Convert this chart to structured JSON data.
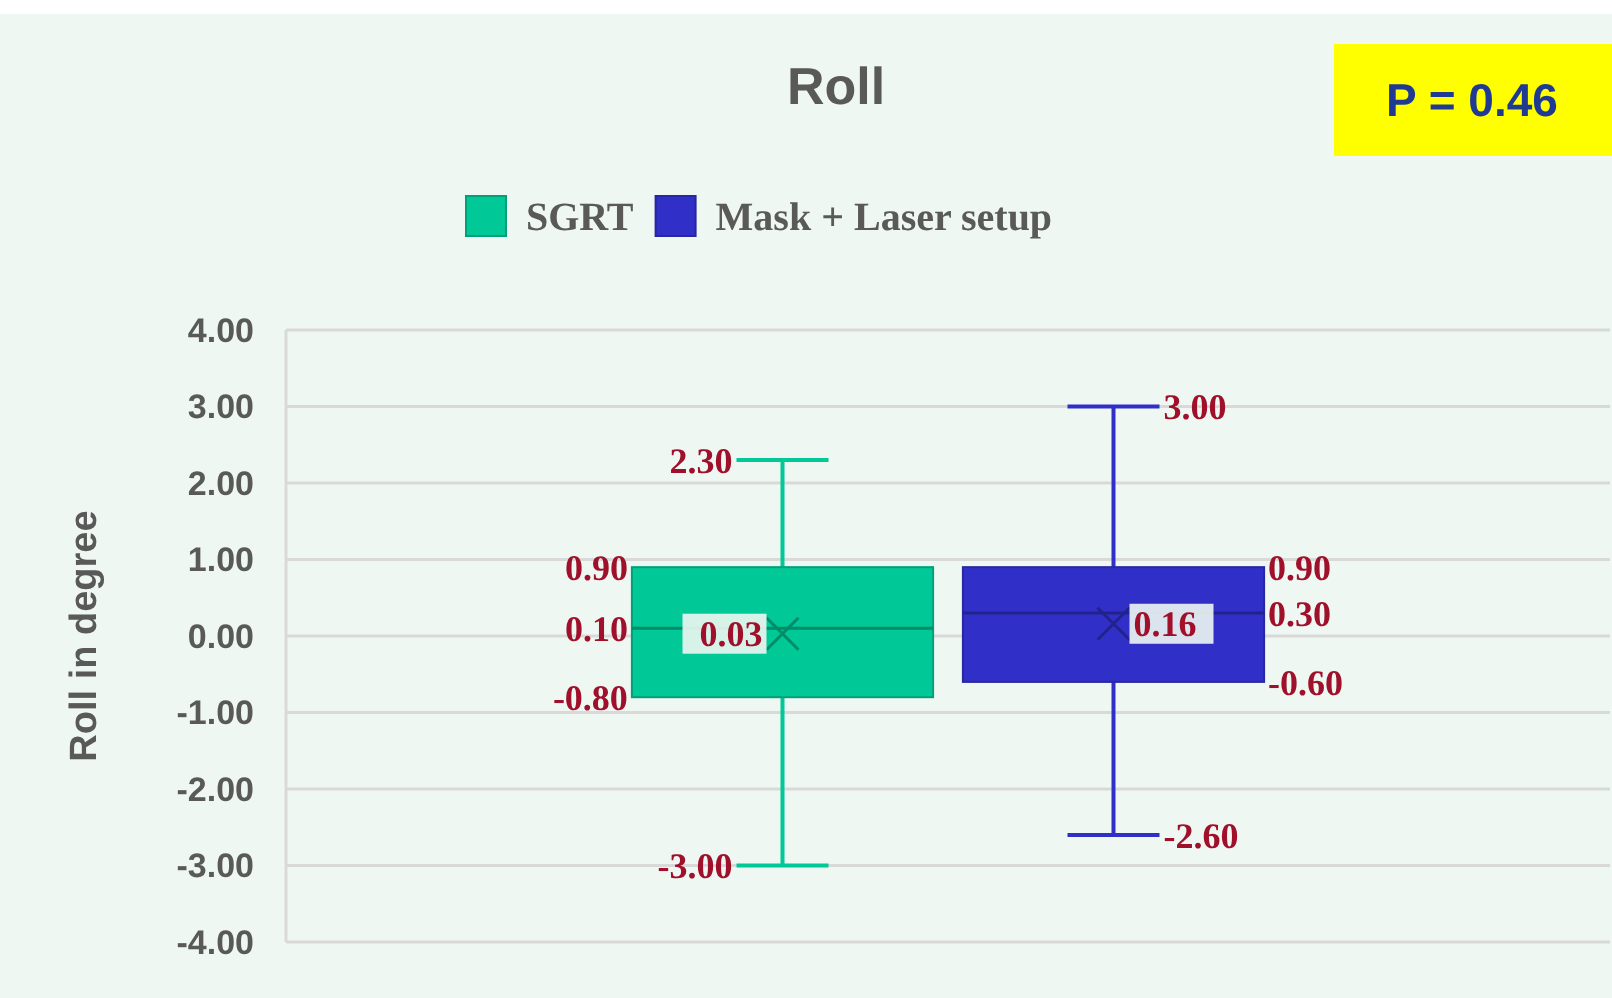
{
  "chart_data": {
    "type": "box",
    "title": "Roll",
    "ylabel": "Roll in degree",
    "categories": [
      null
    ],
    "series": [
      {
        "name": "SGRT",
        "color": "#00c896",
        "boxes": [
          {
            "low": -3.0,
            "q1": -0.8,
            "median": 0.1,
            "q3": 0.9,
            "high": 2.3,
            "mean": 0.03
          }
        ],
        "value_labels": [
          [
            "2.30",
            "0.90",
            "0.10",
            "-0.80",
            "-3.00",
            "0.03"
          ]
        ]
      },
      {
        "name": "Mask + Laser setup",
        "color": "#3030c8",
        "boxes": [
          {
            "low": -2.6,
            "q1": -0.6,
            "median": 0.3,
            "q3": 0.9,
            "high": 3.0,
            "mean": 0.16
          }
        ],
        "value_labels": [
          [
            "3.00",
            "0.90",
            "0.30",
            "-0.60",
            "-2.60",
            "0.16"
          ]
        ]
      }
    ],
    "ylim": [
      -4,
      4
    ],
    "yticks": [
      {
        "value": -4,
        "label": "-4.00"
      },
      {
        "value": -3,
        "label": "-3.00"
      },
      {
        "value": -2,
        "label": "-2.00"
      },
      {
        "value": -1,
        "label": "-1.00"
      },
      {
        "value": 0,
        "label": "0.00"
      },
      {
        "value": 1,
        "label": "1.00"
      },
      {
        "value": 2,
        "label": "2.00"
      },
      {
        "value": 3,
        "label": "3.00"
      },
      {
        "value": 4,
        "label": "4.00"
      }
    ],
    "grid": "y",
    "legend": "top",
    "data_labels": true,
    "annotations": [
      "P = 0.46"
    ]
  }
}
